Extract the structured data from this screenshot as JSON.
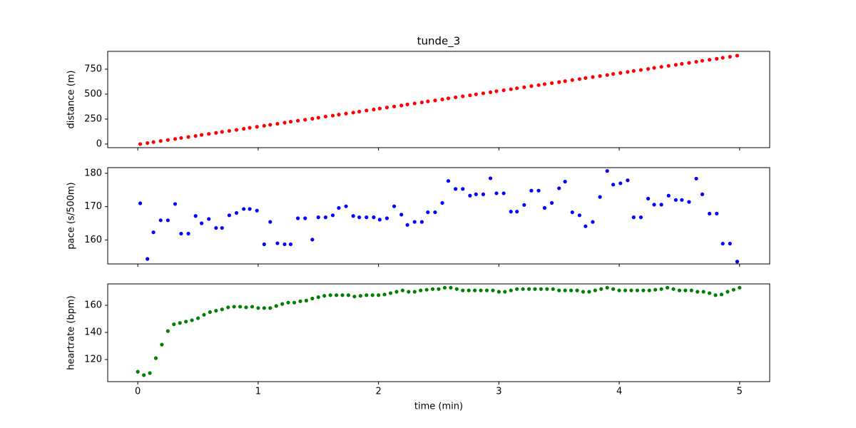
{
  "chart_data": [
    {
      "type": "scatter",
      "title": "tunde_3",
      "ylabel": "distance (m)",
      "color": "#ff0000",
      "x": [
        0.02,
        0.08,
        0.13,
        0.19,
        0.25,
        0.31,
        0.36,
        0.42,
        0.48,
        0.53,
        0.59,
        0.65,
        0.7,
        0.76,
        0.82,
        0.88,
        0.93,
        0.99,
        1.05,
        1.1,
        1.16,
        1.22,
        1.27,
        1.33,
        1.39,
        1.45,
        1.5,
        1.56,
        1.62,
        1.67,
        1.73,
        1.79,
        1.84,
        1.9,
        1.96,
        2.01,
        2.07,
        2.13,
        2.19,
        2.24,
        2.3,
        2.36,
        2.41,
        2.47,
        2.53,
        2.58,
        2.64,
        2.7,
        2.76,
        2.81,
        2.87,
        2.93,
        2.98,
        3.04,
        3.1,
        3.15,
        3.21,
        3.27,
        3.33,
        3.38,
        3.44,
        3.5,
        3.55,
        3.61,
        3.67,
        3.72,
        3.78,
        3.84,
        3.9,
        3.95,
        4.01,
        4.07,
        4.12,
        4.18,
        4.24,
        4.29,
        4.35,
        4.41,
        4.47,
        4.52,
        4.58,
        4.64,
        4.69,
        4.75,
        4.81,
        4.86,
        4.92,
        4.98
      ],
      "values": [
        0,
        10,
        20,
        31,
        41,
        51,
        61,
        71,
        81,
        92,
        102,
        112,
        122,
        132,
        142,
        153,
        163,
        173,
        183,
        193,
        203,
        214,
        224,
        234,
        244,
        254,
        264,
        275,
        285,
        295,
        305,
        315,
        325,
        336,
        346,
        356,
        366,
        376,
        386,
        397,
        407,
        417,
        427,
        437,
        447,
        458,
        468,
        478,
        488,
        498,
        508,
        519,
        529,
        539,
        549,
        559,
        569,
        580,
        590,
        600,
        610,
        620,
        630,
        641,
        651,
        661,
        671,
        681,
        691,
        702,
        712,
        722,
        732,
        742,
        752,
        763,
        773,
        783,
        793,
        803,
        813,
        824,
        834,
        844,
        854,
        864,
        874,
        885
      ],
      "xlim": [
        -0.25,
        5.25
      ],
      "ylim": [
        -36,
        928
      ],
      "yticks": [
        0,
        250,
        500,
        750
      ]
    },
    {
      "type": "scatter",
      "ylabel": "pace (s/500m)",
      "color": "#0000ff",
      "x": [
        0.02,
        0.08,
        0.13,
        0.19,
        0.25,
        0.31,
        0.36,
        0.42,
        0.48,
        0.53,
        0.59,
        0.65,
        0.7,
        0.76,
        0.82,
        0.88,
        0.93,
        0.99,
        1.05,
        1.1,
        1.16,
        1.22,
        1.27,
        1.33,
        1.39,
        1.45,
        1.5,
        1.56,
        1.62,
        1.67,
        1.73,
        1.79,
        1.84,
        1.9,
        1.96,
        2.01,
        2.07,
        2.13,
        2.19,
        2.24,
        2.3,
        2.36,
        2.41,
        2.47,
        2.53,
        2.58,
        2.64,
        2.7,
        2.76,
        2.81,
        2.87,
        2.93,
        2.98,
        3.04,
        3.1,
        3.15,
        3.21,
        3.27,
        3.33,
        3.38,
        3.44,
        3.5,
        3.55,
        3.61,
        3.67,
        3.72,
        3.78,
        3.84,
        3.9,
        3.95,
        4.01,
        4.07,
        4.12,
        4.18,
        4.24,
        4.29,
        4.35,
        4.41,
        4.47,
        4.52,
        4.58,
        4.64,
        4.69,
        4.75,
        4.81,
        4.86,
        4.92,
        4.98
      ],
      "values": [
        171,
        154.3,
        162.3,
        165.9,
        165.9,
        170.8,
        161.9,
        161.9,
        167.2,
        165,
        166.3,
        163.6,
        163.6,
        167.4,
        168.1,
        169.3,
        169.3,
        168.8,
        158.7,
        165.4,
        159,
        158.7,
        158.7,
        166.5,
        166.5,
        160.1,
        166.8,
        166.8,
        167.4,
        169.6,
        170.1,
        167.2,
        166.8,
        166.8,
        166.8,
        166.1,
        166.5,
        170.1,
        167.6,
        164.5,
        165.4,
        165.4,
        168.3,
        168.3,
        171.1,
        177.7,
        175.3,
        175.3,
        173.3,
        173.7,
        173.7,
        178.5,
        174,
        174,
        168.5,
        168.5,
        170.5,
        174.8,
        174.8,
        169.6,
        171.1,
        175.5,
        177.5,
        168.3,
        167.4,
        164.1,
        165.4,
        172.9,
        180.7,
        176.6,
        177,
        177.9,
        166.8,
        166.8,
        172.4,
        170.6,
        170.6,
        173.3,
        172,
        172,
        171.4,
        178.4,
        173.7,
        167.9,
        167.9,
        158.9,
        158.9,
        153.5
      ],
      "xlim": [
        -0.25,
        5.25
      ],
      "ylim": [
        152.8,
        181.7
      ],
      "yticks": [
        160,
        170,
        180
      ]
    },
    {
      "type": "scatter",
      "ylabel": "heartrate (bpm)",
      "xlabel": "time (min)",
      "color": "#008000",
      "x": [
        0,
        0.05,
        0.1,
        0.15,
        0.2,
        0.25,
        0.3,
        0.35,
        0.4,
        0.45,
        0.5,
        0.55,
        0.6,
        0.65,
        0.7,
        0.75,
        0.8,
        0.85,
        0.9,
        0.95,
        1.0,
        1.05,
        1.1,
        1.15,
        1.2,
        1.25,
        1.3,
        1.35,
        1.4,
        1.45,
        1.5,
        1.55,
        1.6,
        1.65,
        1.7,
        1.75,
        1.8,
        1.85,
        1.9,
        1.95,
        2.0,
        2.05,
        2.1,
        2.15,
        2.2,
        2.25,
        2.3,
        2.35,
        2.4,
        2.45,
        2.5,
        2.55,
        2.6,
        2.65,
        2.7,
        2.75,
        2.8,
        2.85,
        2.9,
        2.95,
        3.0,
        3.05,
        3.1,
        3.15,
        3.2,
        3.25,
        3.3,
        3.35,
        3.4,
        3.45,
        3.5,
        3.55,
        3.6,
        3.65,
        3.7,
        3.75,
        3.8,
        3.85,
        3.9,
        3.95,
        4.0,
        4.05,
        4.1,
        4.15,
        4.2,
        4.25,
        4.3,
        4.35,
        4.4,
        4.45,
        4.5,
        4.55,
        4.6,
        4.65,
        4.7,
        4.75,
        4.8,
        4.85,
        4.9,
        4.95,
        5.0
      ],
      "values": [
        111,
        108.5,
        110,
        121,
        131,
        141,
        146,
        147,
        148,
        149,
        150.5,
        153,
        155,
        156,
        157,
        158.5,
        159,
        159,
        158.5,
        159,
        158,
        158,
        158,
        159.5,
        161,
        162,
        162,
        163,
        163.5,
        165,
        166,
        167,
        167.5,
        167.5,
        167.5,
        167.5,
        166.5,
        167,
        167.5,
        167.5,
        167.5,
        168,
        169,
        170,
        171,
        170,
        170,
        171,
        171.5,
        172,
        172,
        173,
        173,
        172,
        171,
        171,
        171,
        171,
        171,
        171,
        170,
        170,
        171,
        172,
        172,
        172,
        172,
        172,
        172,
        172,
        171,
        171,
        171,
        171,
        170,
        170,
        171,
        172,
        173,
        172,
        171,
        171,
        171,
        171,
        171,
        171,
        171.5,
        172,
        173,
        172,
        171,
        171,
        171,
        170,
        170,
        169,
        167.5,
        168,
        170,
        171.5,
        173
      ],
      "xlim": [
        -0.25,
        5.25
      ],
      "ylim": [
        103.7,
        175.8
      ],
      "xticks": [
        0,
        1,
        2,
        3,
        4,
        5
      ],
      "yticks": [
        120,
        140,
        160
      ]
    }
  ]
}
